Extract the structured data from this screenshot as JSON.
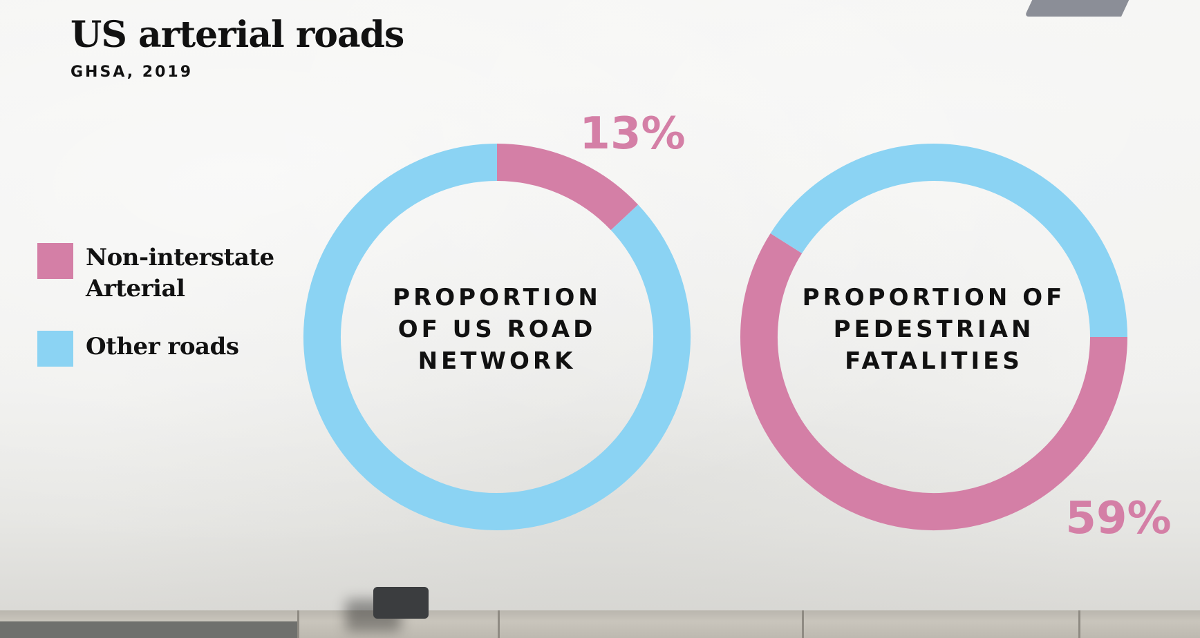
{
  "chart_data": {
    "title": "US arterial roads",
    "subtitle": "GHSA, 2019",
    "type": "pie",
    "legend": {
      "placement": "left",
      "items": [
        {
          "label_lines": [
            "Non-interstate",
            "Arterial"
          ],
          "color": "#d47fa6"
        },
        {
          "label_lines": [
            "Other roads"
          ],
          "color": "#8bd3f3"
        }
      ]
    },
    "charts": [
      {
        "center_label_lines": [
          "PROPORTION",
          "OF US ROAD",
          "NETWORK"
        ],
        "highlight_label": "13%",
        "slices": [
          {
            "category": "Non-interstate Arterial",
            "value": 13
          },
          {
            "category": "Other roads",
            "value": 87
          }
        ]
      },
      {
        "center_label_lines": [
          "PROPORTION OF",
          "PEDESTRIAN",
          "FATALITIES"
        ],
        "highlight_label": "59%",
        "slices": [
          {
            "category": "Non-interstate Arterial",
            "value": 59
          },
          {
            "category": "Other roads",
            "value": 41
          }
        ]
      }
    ]
  }
}
